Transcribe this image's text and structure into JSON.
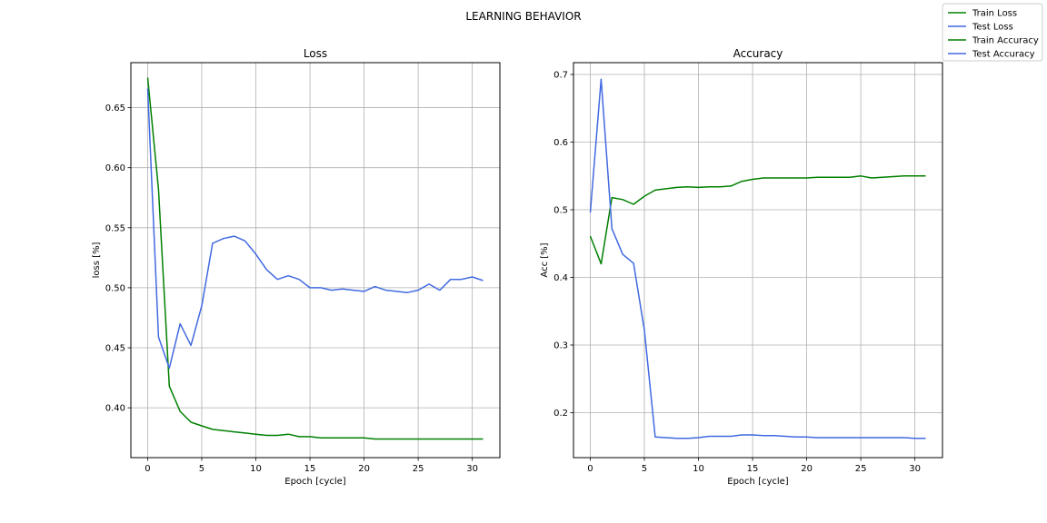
{
  "figure": {
    "title": "LEARNING BEHAVIOR"
  },
  "legend": {
    "entries": [
      {
        "label": "Train Loss",
        "color": "#008000"
      },
      {
        "label": "Test Loss",
        "color": "#4169e1"
      },
      {
        "label": "Train Accuracy",
        "color": "#008000"
      },
      {
        "label": "Test Accuracy",
        "color": "#4169e1"
      }
    ],
    "placement": "top-right"
  },
  "chart_data": [
    {
      "type": "line",
      "title": "Loss",
      "xlabel": "Epoch [cycle]",
      "ylabel": "loss [%]",
      "xlim": [
        -1.55,
        32.55
      ],
      "ylim": [
        0.3585,
        0.6875
      ],
      "xticks": [
        0,
        5,
        10,
        15,
        20,
        25,
        30
      ],
      "yticks": [
        0.4,
        0.45,
        0.5,
        0.55,
        0.6,
        0.65
      ],
      "ytick_labels": [
        "0.40",
        "0.45",
        "0.50",
        "0.55",
        "0.60",
        "0.65"
      ],
      "grid": true,
      "x": [
        0,
        1,
        2,
        3,
        4,
        5,
        6,
        7,
        8,
        9,
        10,
        11,
        12,
        13,
        14,
        15,
        16,
        17,
        18,
        19,
        20,
        21,
        22,
        23,
        24,
        25,
        26,
        27,
        28,
        29,
        30,
        31
      ],
      "series": [
        {
          "name": "Train Loss",
          "color": "#008000",
          "values": [
            0.675,
            0.582,
            0.418,
            0.397,
            0.388,
            0.385,
            0.382,
            0.381,
            0.38,
            0.379,
            0.378,
            0.377,
            0.377,
            0.378,
            0.376,
            0.376,
            0.375,
            0.375,
            0.375,
            0.375,
            0.375,
            0.374,
            0.374,
            0.374,
            0.374,
            0.374,
            0.374,
            0.374,
            0.374,
            0.374,
            0.374,
            0.374
          ]
        },
        {
          "name": "Test Loss",
          "color": "#4169e1",
          "values": [
            0.666,
            0.459,
            0.433,
            0.47,
            0.452,
            0.485,
            0.537,
            0.541,
            0.543,
            0.539,
            0.528,
            0.515,
            0.507,
            0.51,
            0.507,
            0.5,
            0.5,
            0.498,
            0.499,
            0.498,
            0.497,
            0.501,
            0.498,
            0.497,
            0.496,
            0.498,
            0.503,
            0.498,
            0.507,
            0.507,
            0.509,
            0.506
          ]
        }
      ]
    },
    {
      "type": "line",
      "title": "Accuracy",
      "xlabel": "Epoch [cycle]",
      "ylabel": "Acc [%]",
      "xlim": [
        -1.55,
        32.55
      ],
      "ylim": [
        0.1335,
        0.7175
      ],
      "xticks": [
        0,
        5,
        10,
        15,
        20,
        25,
        30
      ],
      "yticks": [
        0.2,
        0.3,
        0.4,
        0.5,
        0.6,
        0.7
      ],
      "ytick_labels": [
        "0.2",
        "0.3",
        "0.4",
        "0.5",
        "0.6",
        "0.7"
      ],
      "grid": true,
      "x": [
        0,
        1,
        2,
        3,
        4,
        5,
        6,
        7,
        8,
        9,
        10,
        11,
        12,
        13,
        14,
        15,
        16,
        17,
        18,
        19,
        20,
        21,
        22,
        23,
        24,
        25,
        26,
        27,
        28,
        29,
        30,
        31
      ],
      "series": [
        {
          "name": "Train Accuracy",
          "color": "#008000",
          "values": [
            0.461,
            0.42,
            0.518,
            0.515,
            0.508,
            0.52,
            0.529,
            0.531,
            0.533,
            0.534,
            0.533,
            0.534,
            0.534,
            0.535,
            0.542,
            0.545,
            0.547,
            0.547,
            0.547,
            0.547,
            0.547,
            0.548,
            0.548,
            0.548,
            0.548,
            0.55,
            0.547,
            0.548,
            0.549,
            0.55,
            0.55,
            0.55
          ]
        },
        {
          "name": "Test Accuracy",
          "color": "#4169e1",
          "values": [
            0.496,
            0.693,
            0.472,
            0.434,
            0.421,
            0.322,
            0.164,
            0.163,
            0.162,
            0.162,
            0.163,
            0.165,
            0.165,
            0.165,
            0.167,
            0.167,
            0.166,
            0.166,
            0.165,
            0.164,
            0.164,
            0.163,
            0.163,
            0.163,
            0.163,
            0.163,
            0.163,
            0.163,
            0.163,
            0.163,
            0.162,
            0.162
          ]
        }
      ]
    }
  ]
}
